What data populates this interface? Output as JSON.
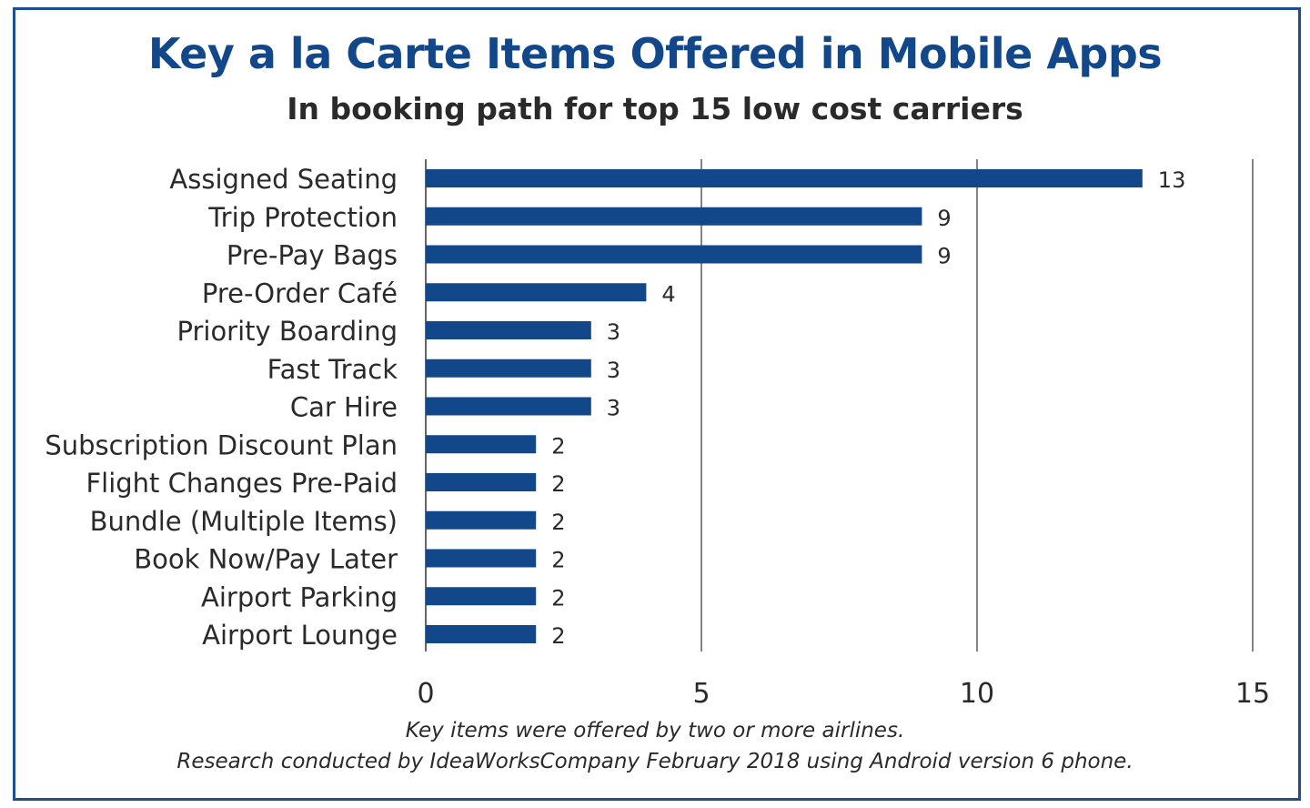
{
  "chart_data": {
    "type": "bar",
    "orientation": "horizontal",
    "title": "Key a la Carte Items Offered in Mobile Apps",
    "subtitle": "In booking path for top 15 low cost carriers",
    "categories": [
      "Assigned Seating",
      "Trip Protection",
      "Pre-Pay Bags",
      "Pre-Order Café",
      "Priority Boarding",
      "Fast Track",
      "Car Hire",
      "Subscription Discount Plan",
      "Flight Changes Pre-Paid",
      "Bundle (Multiple Items)",
      "Book Now/Pay Later",
      "Airport Parking",
      "Airport Lounge"
    ],
    "values": [
      13,
      9,
      9,
      4,
      3,
      3,
      3,
      2,
      2,
      2,
      2,
      2,
      2
    ],
    "xlim": [
      0,
      15
    ],
    "x_ticks": [
      0,
      5,
      10,
      15
    ],
    "grid": true,
    "data_labels": true,
    "bar_color": "#12488a",
    "footnotes": [
      "Key items were offered by two or more airlines.",
      "Research conducted by IdeaWorksCompany February 2018 using Android version 6 phone."
    ]
  },
  "colors": {
    "title": "#12488a",
    "border": "#1f4e8c",
    "bar": "#12488a",
    "gridline": "#333333",
    "text": "#2a2a2a"
  }
}
